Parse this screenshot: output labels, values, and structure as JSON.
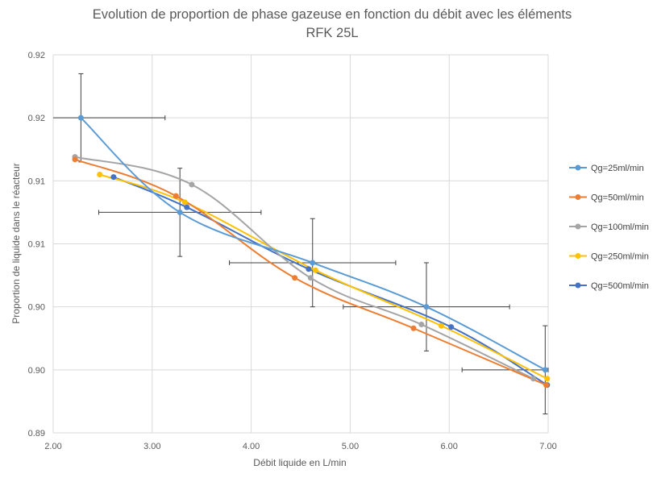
{
  "chart_data": {
    "type": "scatter",
    "title_line1": "Evolution  de proportion de phase gazeuse en fonction du débit avec les éléments",
    "title_line2": "RFK 25L",
    "xlabel": "Débit liquide en L/min",
    "ylabel": "Proportion de liquide dans le réacteur",
    "xlim": [
      2.0,
      7.0
    ],
    "ylim": [
      0.888,
      0.918
    ],
    "x_ticks": [
      2.0,
      3.0,
      4.0,
      5.0,
      6.0,
      7.0
    ],
    "x_tick_labels": [
      "2.00",
      "3.00",
      "4.00",
      "5.00",
      "6.00",
      "7.00"
    ],
    "y_ticks": [
      0.888,
      0.893,
      0.898,
      0.903,
      0.908,
      0.913,
      0.918
    ],
    "y_tick_labels": [
      "0.89",
      "0.90",
      "0.90",
      "0.91",
      "0.91",
      "0.92",
      "0.92"
    ],
    "grid": true,
    "legend_position": "right",
    "series": [
      {
        "name": "Qg=25ml/min",
        "color": "#5B9BD5",
        "x": [
          2.28,
          3.28,
          4.62,
          5.77,
          6.97
        ],
        "y": [
          0.913,
          0.9055,
          0.9015,
          0.898,
          0.893
        ],
        "xerr": [
          0.85,
          0.82,
          0.84,
          0.84,
          0.84
        ],
        "yerr": [
          0.0035,
          0.0035,
          0.0035,
          0.0035,
          0.0035
        ]
      },
      {
        "name": "Qg=50ml/min",
        "color": "#ED7D31",
        "x": [
          2.22,
          3.24,
          4.44,
          5.64,
          6.98
        ],
        "y": [
          0.9097,
          0.9068,
          0.9003,
          0.8963,
          0.8918
        ]
      },
      {
        "name": "Qg=100ml/min",
        "color": "#A5A5A5",
        "x": [
          2.22,
          3.4,
          4.6,
          5.72,
          6.85
        ],
        "y": [
          0.9099,
          0.9077,
          0.9003,
          0.8966,
          0.8923
        ]
      },
      {
        "name": "Qg=250ml/min",
        "color": "#FFC000",
        "x": [
          2.47,
          3.33,
          4.65,
          5.92,
          6.99
        ],
        "y": [
          0.9085,
          0.9063,
          0.9009,
          0.8965,
          0.8923
        ]
      },
      {
        "name": "Qg=500ml/min",
        "color": "#4472C4",
        "x": [
          2.61,
          3.35,
          4.58,
          6.02,
          6.99
        ],
        "y": [
          0.9083,
          0.9059,
          0.901,
          0.8964,
          0.8918
        ]
      }
    ]
  }
}
